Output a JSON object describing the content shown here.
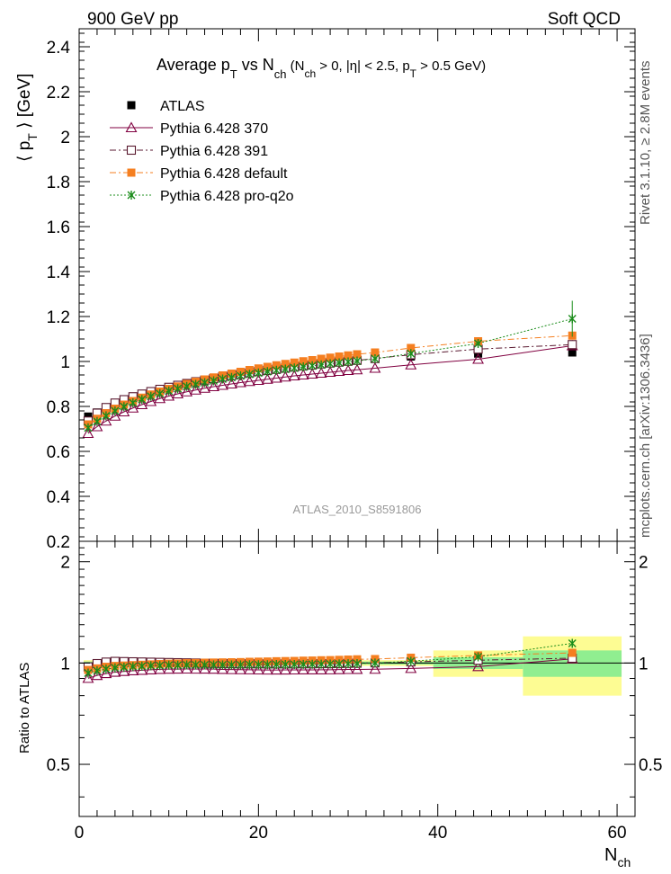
{
  "header": {
    "left": "900 GeV pp",
    "right": "Soft QCD"
  },
  "side_labels": {
    "rivet": "Rivet 3.1.10, ≥ 2.8M events",
    "mcplots": "mcplots.cern.ch [arXiv:1306.3436]"
  },
  "chart_data": {
    "type": "scatter",
    "title_parts": {
      "a": "Average p",
      "b": "T",
      "c": " vs N",
      "d": "ch",
      "e": " (N",
      "f": "ch",
      "g": " > 0, |η| < 2.5, p",
      "h": "T",
      "i": " > 0.5 GeV)"
    },
    "ylabel_parts": {
      "a": "⟨ p",
      "b": "T",
      "c": " ⟩ [GeV]"
    },
    "xlabel_parts": {
      "a": "N",
      "b": "ch"
    },
    "ratio_ylabel": "Ratio to ATLAS",
    "watermark": "ATLAS_2010_S8591806",
    "xlim": [
      0,
      62
    ],
    "ylim": [
      0.2,
      2.48
    ],
    "ratio_ylim": [
      0.35,
      2.3
    ],
    "x_ticks": [
      "0",
      "20",
      "40",
      "60"
    ],
    "y_ticks": [
      "0.2",
      "0.4",
      "0.6",
      "0.8",
      "1",
      "1.2",
      "1.4",
      "1.6",
      "1.8",
      "2",
      "2.2",
      "2.4"
    ],
    "ratio_ticks": [
      "0.5",
      "1",
      "2"
    ],
    "x": [
      1,
      2,
      3,
      4,
      5,
      6,
      7,
      8,
      9,
      10,
      11,
      12,
      13,
      14,
      15,
      16,
      17,
      18,
      19,
      20,
      21,
      22,
      23,
      24,
      25,
      26,
      27,
      28,
      29,
      30,
      31,
      33,
      37,
      44.5,
      55
    ],
    "series": [
      {
        "name": "ATLAS",
        "color": "#000000",
        "marker": "filled-square",
        "values": [
          0.755,
          0.773,
          0.79,
          0.806,
          0.822,
          0.836,
          0.849,
          0.861,
          0.872,
          0.882,
          0.892,
          0.901,
          0.91,
          0.918,
          0.926,
          0.934,
          0.941,
          0.948,
          0.954,
          0.96,
          0.966,
          0.971,
          0.976,
          0.981,
          0.985,
          0.989,
          0.993,
          0.997,
          1.0,
          1.003,
          1.006,
          1.012,
          1.022,
          1.035,
          1.04
        ]
      },
      {
        "name": "Pythia 6.428 370",
        "color": "#800040",
        "marker": "open-triangle",
        "line": "solid",
        "values": [
          0.68,
          0.71,
          0.735,
          0.757,
          0.776,
          0.793,
          0.808,
          0.822,
          0.835,
          0.846,
          0.856,
          0.865,
          0.873,
          0.881,
          0.888,
          0.894,
          0.9,
          0.906,
          0.911,
          0.916,
          0.921,
          0.926,
          0.931,
          0.936,
          0.94,
          0.944,
          0.948,
          0.952,
          0.956,
          0.96,
          0.963,
          0.97,
          0.985,
          1.01,
          1.07
        ]
      },
      {
        "name": "Pythia 6.428 391",
        "color": "#5a1a30",
        "marker": "open-square",
        "line": "dashdot",
        "values": [
          0.735,
          0.77,
          0.795,
          0.815,
          0.83,
          0.843,
          0.855,
          0.866,
          0.876,
          0.885,
          0.894,
          0.902,
          0.91,
          0.917,
          0.924,
          0.931,
          0.937,
          0.943,
          0.949,
          0.955,
          0.96,
          0.965,
          0.97,
          0.975,
          0.98,
          0.984,
          0.989,
          0.993,
          0.997,
          1.001,
          1.005,
          1.013,
          1.03,
          1.055,
          1.075
        ]
      },
      {
        "name": "Pythia 6.428 default",
        "color": "#f57f20",
        "marker": "filled-square",
        "line": "dashdot",
        "values": [
          0.72,
          0.745,
          0.77,
          0.79,
          0.808,
          0.824,
          0.839,
          0.853,
          0.866,
          0.878,
          0.889,
          0.9,
          0.91,
          0.92,
          0.929,
          0.938,
          0.946,
          0.954,
          0.962,
          0.969,
          0.976,
          0.983,
          0.989,
          0.995,
          1.001,
          1.006,
          1.012,
          1.017,
          1.022,
          1.027,
          1.032,
          1.04,
          1.06,
          1.09,
          1.115
        ]
      },
      {
        "name": "Pythia 6.428 pro-q2o",
        "color": "#1a8c1a",
        "marker": "star",
        "line": "dotted",
        "values": [
          0.705,
          0.733,
          0.758,
          0.78,
          0.799,
          0.816,
          0.831,
          0.845,
          0.857,
          0.869,
          0.879,
          0.889,
          0.898,
          0.906,
          0.914,
          0.922,
          0.929,
          0.936,
          0.943,
          0.949,
          0.955,
          0.961,
          0.966,
          0.971,
          0.976,
          0.981,
          0.985,
          0.99,
          0.994,
          0.998,
          1.002,
          1.012,
          1.035,
          1.08,
          1.19
        ]
      }
    ],
    "atlas_band": [
      {
        "x": [
          0.5,
          39.5
        ],
        "inner": 0.01,
        "outer": 0.02
      },
      {
        "x": [
          39.5,
          49.5
        ],
        "inner": 0.04,
        "outer": 0.09
      },
      {
        "x": [
          49.5,
          60.5
        ],
        "inner": 0.09,
        "outer": 0.2
      }
    ]
  }
}
